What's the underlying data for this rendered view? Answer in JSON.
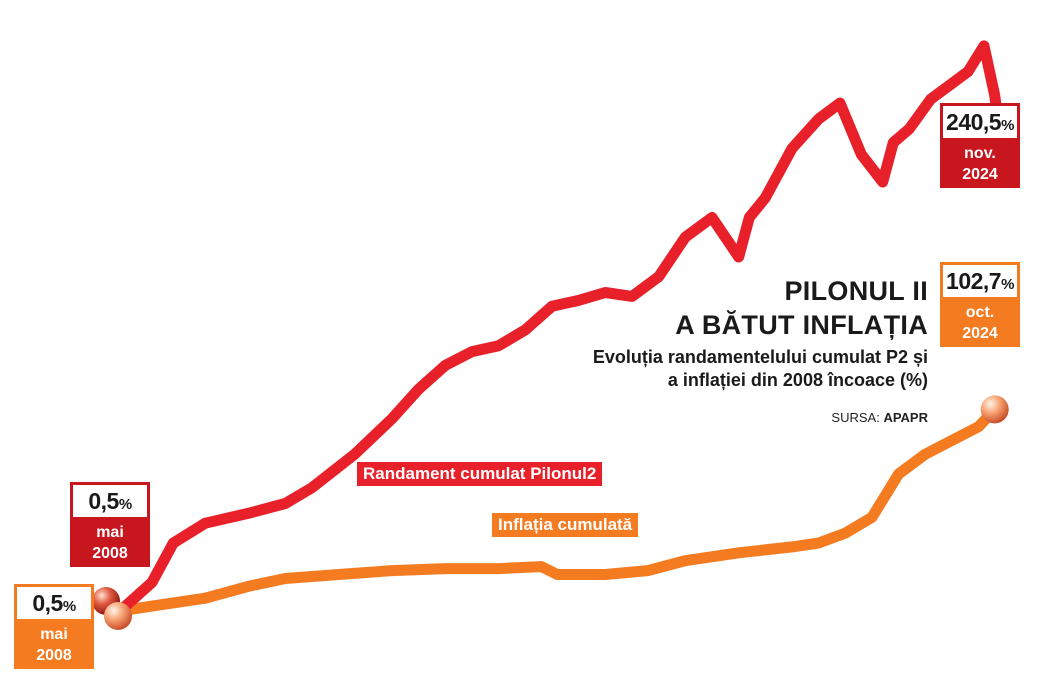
{
  "title_line1": "PILONUL II",
  "title_line2": "A BĂTUT INFLAȚIA",
  "subtitle": "Evoluția randamentelului cumulat P2 și a inflației din 2008 încoace (%)",
  "source_label": "SURSA:",
  "source_name": "APAPR",
  "colors": {
    "pilon2": "#e8202a",
    "inflation": "#f47b20",
    "callout_red": "#c7161e"
  },
  "callouts": {
    "p2_start": {
      "value": "0,5",
      "unit": "%",
      "month": "mai",
      "year": "2008"
    },
    "inf_start": {
      "value": "0,5",
      "unit": "%",
      "month": "mai",
      "year": "2008"
    },
    "p2_end": {
      "value": "240,5",
      "unit": "%",
      "month": "nov.",
      "year": "2024"
    },
    "inf_end": {
      "value": "102,7",
      "unit": "%",
      "month": "oct.",
      "year": "2024"
    }
  },
  "chart_data": {
    "type": "line",
    "x_start": "mai 2008",
    "x_end": "nov. 2024",
    "grid": false,
    "legend": "inline labels on lines",
    "ylim": [
      0,
      270
    ],
    "series": [
      {
        "name": "Randament cumulat Pilonul2",
        "x": [
          2008.4,
          2009.0,
          2009.4,
          2010.0,
          2010.8,
          2011.5,
          2012.0,
          2012.8,
          2013.5,
          2014.0,
          2014.5,
          2015.0,
          2015.5,
          2016.0,
          2016.5,
          2017.0,
          2017.5,
          2018.0,
          2018.5,
          2019.0,
          2019.5,
          2020.0,
          2020.2,
          2020.5,
          2021.0,
          2021.5,
          2021.9,
          2022.3,
          2022.7,
          2022.9,
          2023.2,
          2023.6,
          2024.0,
          2024.3,
          2024.6,
          2024.8,
          2024.9
        ],
        "values": [
          0.5,
          15,
          35,
          45,
          50,
          55,
          63,
          80,
          98,
          113,
          125,
          132,
          135,
          143,
          155,
          158,
          162,
          160,
          170,
          190,
          200,
          180,
          200,
          210,
          235,
          250,
          258,
          232,
          218,
          238,
          245,
          260,
          268,
          274,
          287,
          262,
          240.5
        ]
      },
      {
        "name": "Inflația cumulată",
        "x": [
          2008.4,
          2009.0,
          2010.0,
          2010.8,
          2011.5,
          2012.5,
          2013.5,
          2014.5,
          2015.5,
          2016.3,
          2016.6,
          2017.5,
          2018.3,
          2019.0,
          2020.0,
          2021.0,
          2021.5,
          2022.0,
          2022.5,
          2023.0,
          2023.5,
          2024.0,
          2024.5,
          2024.8
        ],
        "values": [
          0.5,
          3,
          7,
          13,
          17,
          19,
          21,
          22,
          22,
          23,
          19,
          19,
          21,
          26,
          30,
          33,
          35,
          40,
          48,
          70,
          80,
          87,
          94,
          102.7
        ]
      }
    ]
  }
}
